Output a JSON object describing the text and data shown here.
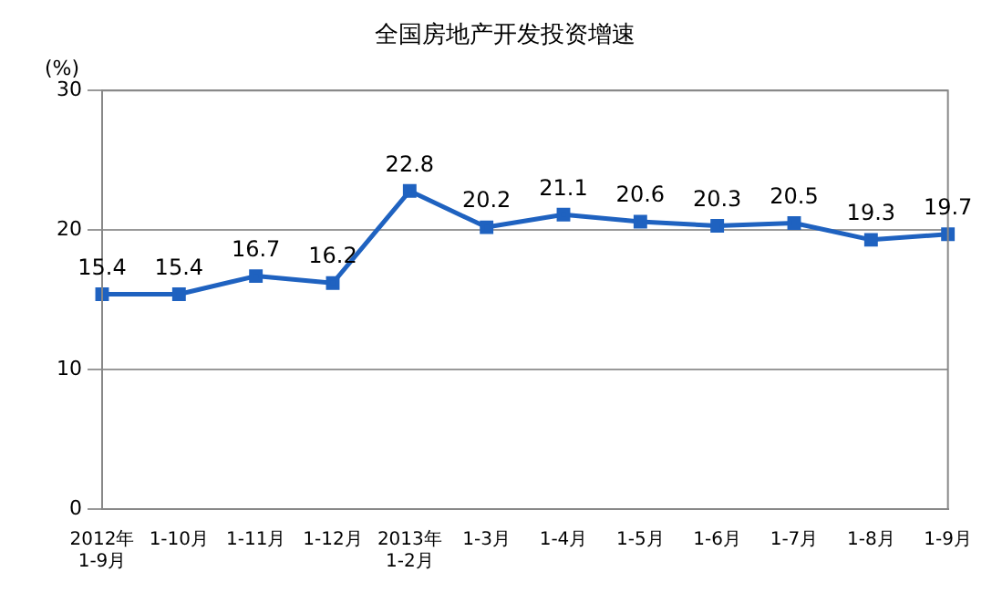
{
  "chart_data": {
    "type": "line",
    "title": "全国房地产开发投资增速",
    "ylabel": "(%)",
    "categories": [
      "2012年\n1-9月",
      "1-10月",
      "1-11月",
      "1-12月",
      "2013年\n1-2月",
      "1-3月",
      "1-4月",
      "1-5月",
      "1-6月",
      "1-7月",
      "1-8月",
      "1-9月"
    ],
    "series": [
      {
        "color": "#1f62c0",
        "values": [
          15.4,
          15.4,
          16.7,
          16.2,
          22.8,
          20.2,
          21.1,
          20.6,
          20.3,
          20.5,
          19.3,
          19.7
        ]
      }
    ],
    "ylim": [
      0,
      30
    ],
    "yticks": [
      0,
      10,
      20,
      30
    ],
    "grid": "y",
    "legend": false,
    "marker": "square",
    "line_style": "solid",
    "data_labels": true
  }
}
